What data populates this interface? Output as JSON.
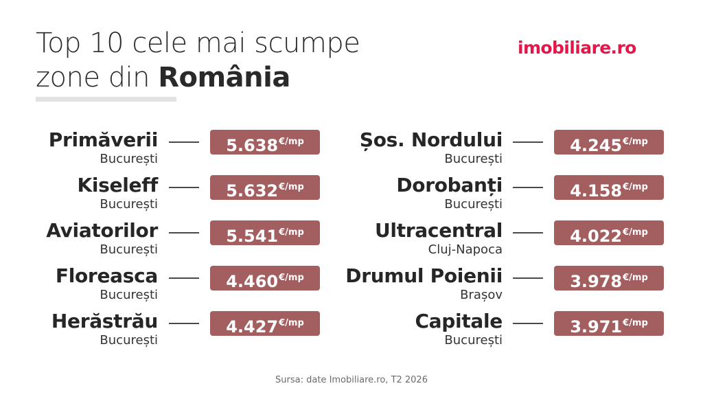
{
  "header": {
    "title_line1": "Top 10 cele mai scumpe",
    "title_line2_prefix": "zone din ",
    "title_line2_bold": "România"
  },
  "logo": {
    "text": "imobiliare.ro",
    "color": "#e5174a"
  },
  "accent_color": "#a35e60",
  "unit": "€/mp",
  "rankings": {
    "left": [
      {
        "zone": "Primăverii",
        "city": "București",
        "price": "5.638"
      },
      {
        "zone": "Kiseleff",
        "city": "București",
        "price": "5.632"
      },
      {
        "zone": "Aviatorilor",
        "city": "București",
        "price": "5.541"
      },
      {
        "zone": "Floreasca",
        "city": "București",
        "price": "4.460"
      },
      {
        "zone": "Herăstrău",
        "city": "București",
        "price": "4.427"
      }
    ],
    "right": [
      {
        "zone": "Șos. Nordului",
        "city": "București",
        "price": "4.245"
      },
      {
        "zone": "Dorobanți",
        "city": "București",
        "price": "4.158"
      },
      {
        "zone": "Ultracentral",
        "city": "Cluj-Napoca",
        "price": "4.022"
      },
      {
        "zone": "Drumul Poienii",
        "city": "Brașov",
        "price": "3.978"
      },
      {
        "zone": "Capitale",
        "city": "București",
        "price": "3.971"
      }
    ]
  },
  "footer": {
    "source": "Sursa: date Imobiliare.ro, T2 2026"
  }
}
